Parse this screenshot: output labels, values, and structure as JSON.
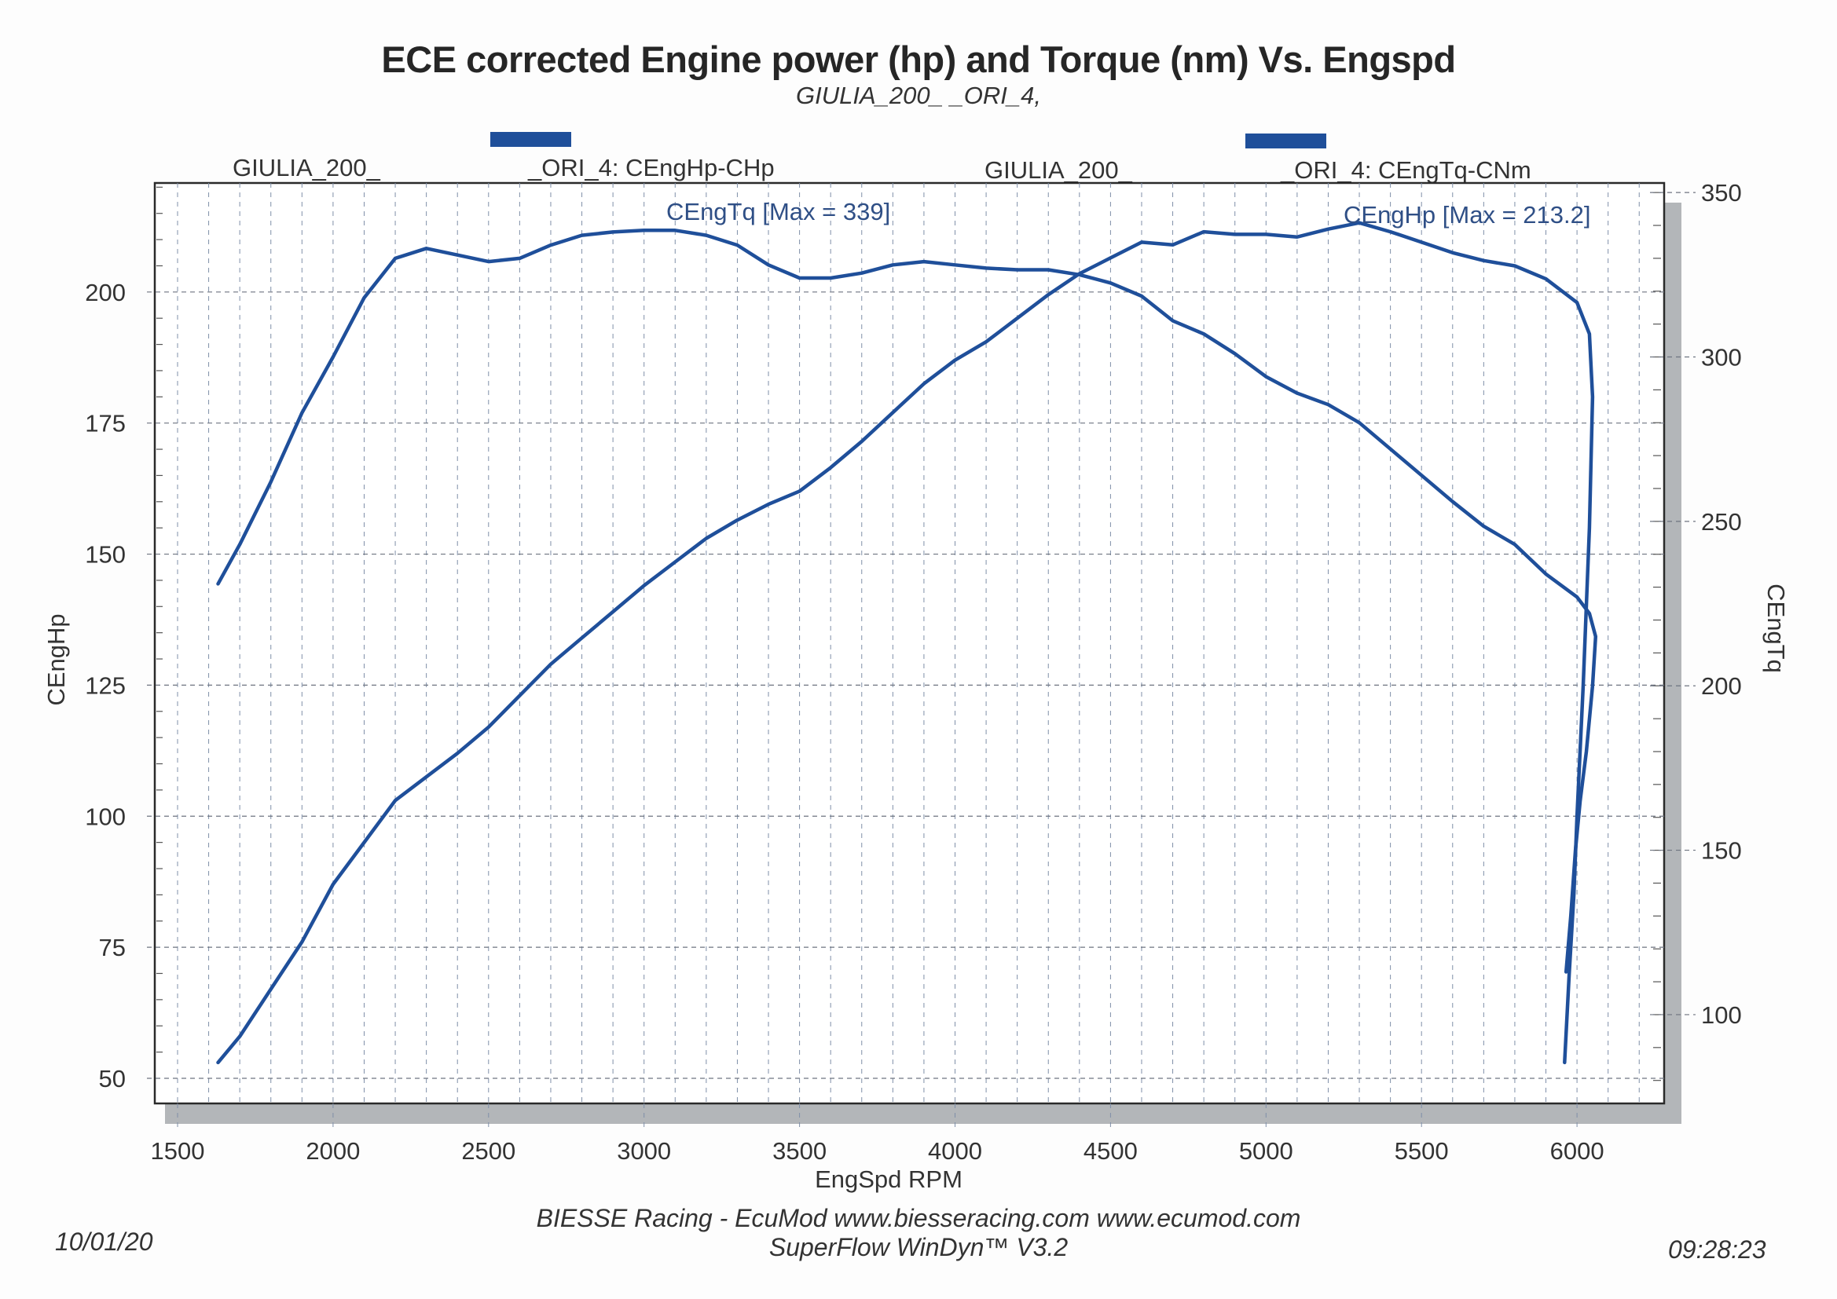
{
  "header": {
    "title": "ECE corrected Engine power (hp) and Torque (nm) Vs. Engspd",
    "subtitle": "GIULIA_200_                _ORI_4,"
  },
  "legend": [
    {
      "label_left": "GIULIA_200_",
      "label_right": "_ORI_4: CEngHp-CHp",
      "color": "#1f4f9a"
    },
    {
      "label_left": "GIULIA_200_",
      "label_right": "_ORI_4: CEngTq-CNm",
      "color": "#1f4f9a"
    }
  ],
  "footer": {
    "credit_line1": "BIESSE Racing - EcuMod www.biesseracing.com www.ecumod.com",
    "credit_line2": "SuperFlow WinDyn™ V3.2",
    "date": "10/01/20",
    "time": "09:28:23"
  },
  "chart_data": {
    "type": "line",
    "title": "ECE corrected Engine power (hp) and Torque (nm) Vs. Engspd",
    "xlabel": "EngSpd RPM",
    "ylabel": "CEngHp",
    "y2label": "CEngTq",
    "xlim": [
      1450,
      6300
    ],
    "ylim": [
      45.2,
      220.8
    ],
    "y2lim": [
      73,
      352.9
    ],
    "xticks": [
      1500,
      2000,
      2500,
      3000,
      3500,
      4000,
      4500,
      5000,
      5500,
      6000
    ],
    "yticks": [
      50,
      75,
      100,
      125,
      150,
      175,
      200
    ],
    "y2ticks": [
      100,
      150,
      200,
      250,
      300,
      350
    ],
    "grid": true,
    "line_color": "#1f4f9a",
    "annotations": [
      {
        "text": "CEngTq [Max = 339]",
        "series": "CEngTq",
        "value": 339
      },
      {
        "text": "CEngHp [Max = 213.2]",
        "series": "CEngHp",
        "value": 213.2
      }
    ],
    "series": [
      {
        "name": "CEngHp",
        "axis": "left",
        "x": [
          1630,
          1700,
          1800,
          1900,
          2000,
          2100,
          2200,
          2300,
          2400,
          2500,
          2600,
          2700,
          2800,
          2900,
          3000,
          3100,
          3200,
          3300,
          3400,
          3500,
          3600,
          3700,
          3800,
          3900,
          4000,
          4100,
          4200,
          4300,
          4400,
          4500,
          4600,
          4700,
          4800,
          4900,
          5000,
          5100,
          5200,
          5300,
          5400,
          5500,
          5600,
          5700,
          5800,
          5900,
          6000,
          6040,
          6050,
          6040,
          6020,
          6000,
          5990,
          5975,
          5960
        ],
        "y": [
          53,
          58,
          67,
          76,
          87,
          95,
          103,
          107.5,
          112,
          117,
          123,
          129,
          134,
          139,
          144,
          148.5,
          153,
          156.5,
          159.5,
          162,
          166.5,
          171.5,
          177,
          182.5,
          187,
          190.5,
          195,
          199.5,
          203.5,
          206.5,
          209.5,
          209,
          211.5,
          211,
          211,
          210.5,
          212,
          213.2,
          211.5,
          209.5,
          207.5,
          206,
          205,
          202.5,
          198,
          192,
          180,
          155,
          125,
          100,
          85,
          70,
          53
        ]
      },
      {
        "name": "CEngTq",
        "axis": "right",
        "x": [
          1630,
          1700,
          1800,
          1900,
          2000,
          2100,
          2200,
          2300,
          2400,
          2500,
          2600,
          2700,
          2800,
          2900,
          3000,
          3100,
          3200,
          3300,
          3400,
          3500,
          3600,
          3700,
          3800,
          3900,
          4000,
          4100,
          4200,
          4300,
          4400,
          4500,
          4600,
          4700,
          4800,
          4900,
          5000,
          5100,
          5200,
          5300,
          5400,
          5500,
          5600,
          5700,
          5800,
          5900,
          6000,
          6040,
          6060,
          6050,
          6030,
          6010,
          5995,
          5980,
          5965
        ],
        "y": [
          231,
          243,
          262,
          283,
          300,
          318,
          330,
          333,
          331,
          329,
          330,
          334,
          337,
          338,
          338.5,
          338.5,
          337,
          334,
          328,
          324,
          324,
          325.5,
          328,
          329,
          328,
          327,
          326.5,
          326.5,
          325,
          322.5,
          318.5,
          311,
          307,
          301,
          294,
          289,
          285.5,
          280,
          272,
          264,
          256,
          248.5,
          243,
          234,
          227,
          222,
          215,
          200,
          180,
          165,
          150,
          130,
          113
        ]
      }
    ]
  }
}
